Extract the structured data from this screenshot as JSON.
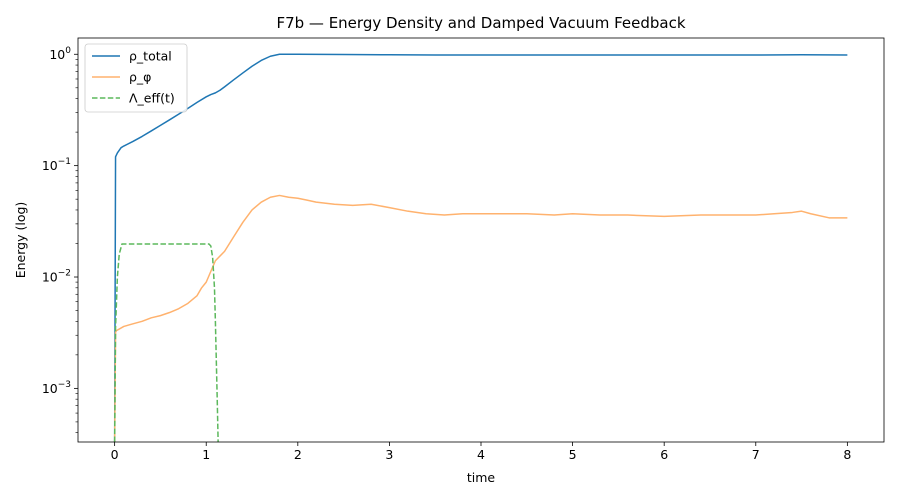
{
  "chart_data": {
    "type": "line",
    "title": "F7b — Energy Density and Damped Vacuum Feedback",
    "xlabel": "time",
    "ylabel": "Energy (log)",
    "xlim": [
      -0.4,
      8.4
    ],
    "ylim": [
      0.00033,
      1.4
    ],
    "yscale": "log",
    "grid": false,
    "legend_position": "top-left",
    "x_ticks": [
      0,
      1,
      2,
      3,
      4,
      5,
      6,
      7,
      8
    ],
    "x_tick_labels": [
      "0",
      "1",
      "2",
      "3",
      "4",
      "5",
      "6",
      "7",
      "8"
    ],
    "y_ticks": [
      0.001,
      0.01,
      0.1,
      1
    ],
    "y_tick_labels": [
      [
        "10",
        "−3"
      ],
      [
        "10",
        "−2"
      ],
      [
        "10",
        "−1"
      ],
      [
        "10",
        "0"
      ]
    ],
    "series": [
      {
        "name": "ρ_total",
        "color": "#1f77b4",
        "dash": "solid",
        "x": [
          0,
          0.01,
          0.03,
          0.07,
          0.1,
          0.2,
          0.3,
          0.4,
          0.5,
          0.6,
          0.7,
          0.8,
          0.9,
          1.0,
          1.05,
          1.1,
          1.15,
          1.2,
          1.3,
          1.4,
          1.5,
          1.6,
          1.7,
          1.8,
          2.0,
          2.5,
          3.0,
          3.5,
          4.0,
          5.0,
          6.0,
          7.0,
          7.5,
          8.0
        ],
        "y": [
          0.0003,
          0.12,
          0.13,
          0.145,
          0.15,
          0.165,
          0.183,
          0.205,
          0.23,
          0.258,
          0.29,
          0.327,
          0.37,
          0.415,
          0.435,
          0.45,
          0.475,
          0.51,
          0.59,
          0.68,
          0.78,
          0.88,
          0.96,
          1.0,
          1.0,
          0.995,
          0.99,
          0.985,
          0.985,
          0.985,
          0.985,
          0.985,
          0.99,
          0.985
        ]
      },
      {
        "name": "ρ_φ",
        "color": "#ffb26e",
        "dash": "solid",
        "x": [
          0,
          0.01,
          0.02,
          0.1,
          0.2,
          0.3,
          0.4,
          0.5,
          0.6,
          0.7,
          0.8,
          0.9,
          0.95,
          1.0,
          1.1,
          1.2,
          1.3,
          1.4,
          1.5,
          1.6,
          1.7,
          1.8,
          1.9,
          2.0,
          2.1,
          2.2,
          2.4,
          2.6,
          2.8,
          3.0,
          3.2,
          3.4,
          3.6,
          3.8,
          4.0,
          4.2,
          4.5,
          4.8,
          5.0,
          5.3,
          5.6,
          6.0,
          6.4,
          6.8,
          7.0,
          7.2,
          7.4,
          7.5,
          7.6,
          7.8,
          8.0
        ],
        "y": [
          0.0003,
          0.0032,
          0.0033,
          0.0036,
          0.0038,
          0.004,
          0.0043,
          0.0045,
          0.0048,
          0.0052,
          0.0058,
          0.0068,
          0.008,
          0.009,
          0.014,
          0.017,
          0.023,
          0.031,
          0.04,
          0.047,
          0.052,
          0.054,
          0.052,
          0.051,
          0.049,
          0.047,
          0.045,
          0.044,
          0.045,
          0.042,
          0.039,
          0.037,
          0.036,
          0.037,
          0.037,
          0.037,
          0.037,
          0.036,
          0.037,
          0.036,
          0.036,
          0.035,
          0.036,
          0.036,
          0.036,
          0.037,
          0.038,
          0.039,
          0.037,
          0.034,
          0.034
        ]
      },
      {
        "name": "Λ_eff(t)",
        "color": "#5cb85c",
        "dash": "dashed",
        "x": [
          0,
          0.01,
          0.03,
          0.05,
          0.08,
          1.0,
          1.03,
          1.05,
          1.07,
          1.09,
          1.1,
          1.12,
          1.13
        ],
        "y": [
          0.00033,
          0.0035,
          0.01,
          0.016,
          0.0198,
          0.0198,
          0.0198,
          0.019,
          0.015,
          0.008,
          0.004,
          0.0008,
          0.00033
        ]
      }
    ]
  }
}
